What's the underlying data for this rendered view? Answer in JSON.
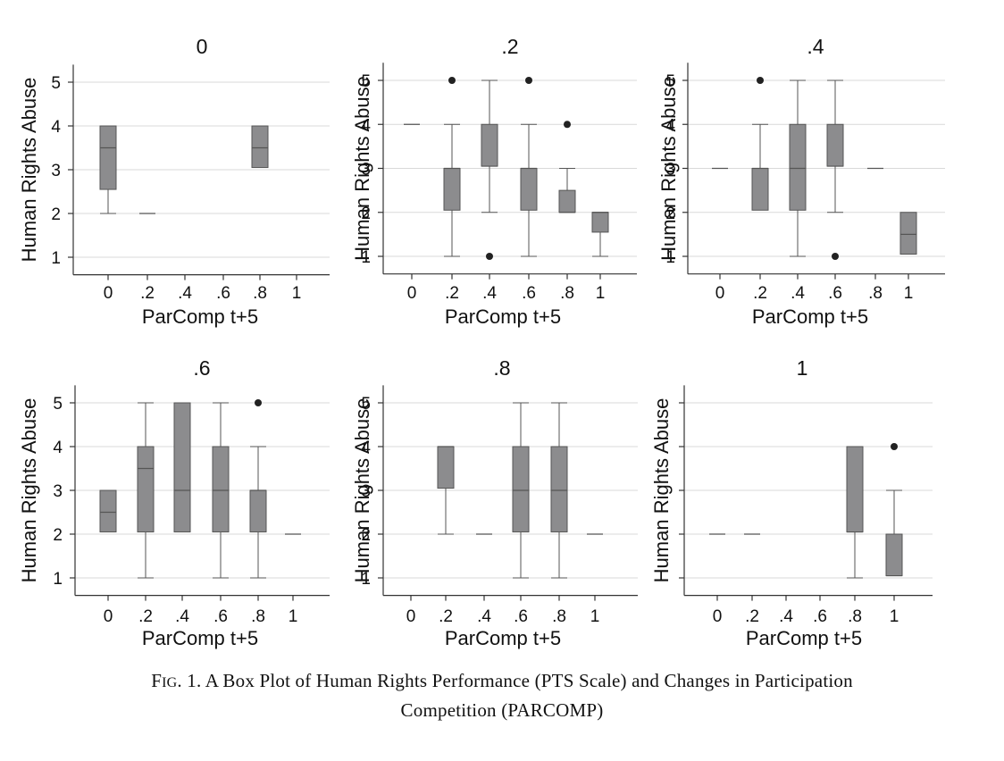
{
  "figure": {
    "caption_prefix_first": "F",
    "caption_prefix_rest": "IG",
    "caption_label": ". 1.",
    "caption_line1": "A Box Plot of Human Rights Performance (PTS Scale) and Changes in Participation",
    "caption_line2": "Competition (PARCOMP)"
  },
  "colors": {
    "box_fill": "#8c8c8e",
    "box_stroke": "#555555",
    "grid": "#d9d9d9",
    "axis": "#333333",
    "outlier": "#222222"
  },
  "chart_data": [
    {
      "type": "box",
      "title": "0",
      "xlabel": "ParComp t+5",
      "ylabel": "Human Rights Abuse",
      "categories": [
        "0",
        ".2",
        ".4",
        ".6",
        ".8",
        "1"
      ],
      "ylim": [
        0.6,
        5.4
      ],
      "yticks": [
        1,
        2,
        3,
        4,
        5
      ],
      "grid": true,
      "boxes": [
        {
          "x": "0",
          "q1": 2.55,
          "median": 3.5,
          "q3": 4,
          "whisker_low": 2,
          "whisker_high": 4,
          "outliers": []
        },
        {
          "x": ".2",
          "q1": 2,
          "median": 2,
          "q3": 2,
          "whisker_low": 2,
          "whisker_high": 2,
          "outliers": []
        },
        {
          "x": ".8",
          "q1": 3.05,
          "median": 3.5,
          "q3": 4,
          "whisker_low": 3.05,
          "whisker_high": 4,
          "outliers": []
        }
      ]
    },
    {
      "type": "box",
      "title": ".2",
      "xlabel": "ParComp t+5",
      "ylabel": "Human Rights Abuse",
      "categories": [
        "0",
        ".2",
        ".4",
        ".6",
        ".8",
        "1"
      ],
      "ylim": [
        0.6,
        5.4
      ],
      "yticks": [
        1,
        2,
        3,
        4,
        5
      ],
      "grid": true,
      "boxes": [
        {
          "x": "0",
          "q1": 4,
          "median": 4,
          "q3": 4,
          "whisker_low": 4,
          "whisker_high": 4,
          "outliers": []
        },
        {
          "x": ".2",
          "q1": 2.05,
          "median": 3,
          "q3": 3,
          "whisker_low": 1,
          "whisker_high": 4,
          "outliers": [
            5
          ]
        },
        {
          "x": ".4",
          "q1": 3.05,
          "median": 3.05,
          "q3": 4,
          "whisker_low": 2,
          "whisker_high": 5,
          "outliers": [
            1
          ]
        },
        {
          "x": ".6",
          "q1": 2.05,
          "median": 3,
          "q3": 3,
          "whisker_low": 1,
          "whisker_high": 4,
          "outliers": [
            5
          ]
        },
        {
          "x": ".8",
          "q1": 2,
          "median": 2,
          "q3": 2.5,
          "whisker_low": 2,
          "whisker_high": 3,
          "outliers": [
            4
          ]
        },
        {
          "x": "1",
          "q1": 1.55,
          "median": 2,
          "q3": 2,
          "whisker_low": 1,
          "whisker_high": 2,
          "outliers": []
        }
      ]
    },
    {
      "type": "box",
      "title": ".4",
      "xlabel": "ParComp t+5",
      "ylabel": "Human Rights Abuse",
      "categories": [
        "0",
        ".2",
        ".4",
        ".6",
        ".8",
        "1"
      ],
      "ylim": [
        0.6,
        5.4
      ],
      "yticks": [
        1,
        2,
        3,
        4,
        5
      ],
      "grid": true,
      "boxes": [
        {
          "x": "0",
          "q1": 3,
          "median": 3,
          "q3": 3,
          "whisker_low": 3,
          "whisker_high": 3,
          "outliers": []
        },
        {
          "x": ".2",
          "q1": 2.05,
          "median": 3,
          "q3": 3,
          "whisker_low": 2.05,
          "whisker_high": 4,
          "outliers": [
            5
          ]
        },
        {
          "x": ".4",
          "q1": 2.05,
          "median": 3,
          "q3": 4,
          "whisker_low": 1,
          "whisker_high": 5,
          "outliers": []
        },
        {
          "x": ".6",
          "q1": 3.05,
          "median": 3.05,
          "q3": 4,
          "whisker_low": 2,
          "whisker_high": 5,
          "outliers": [
            1
          ]
        },
        {
          "x": ".8",
          "q1": 3,
          "median": 3,
          "q3": 3,
          "whisker_low": 3,
          "whisker_high": 3,
          "outliers": []
        },
        {
          "x": "1",
          "q1": 1.05,
          "median": 1.5,
          "q3": 2,
          "whisker_low": 1.05,
          "whisker_high": 2,
          "outliers": []
        }
      ]
    },
    {
      "type": "box",
      "title": ".6",
      "xlabel": "ParComp t+5",
      "ylabel": "Human Rights Abuse",
      "categories": [
        "0",
        ".2",
        ".4",
        ".6",
        ".8",
        "1"
      ],
      "ylim": [
        0.6,
        5.4
      ],
      "yticks": [
        1,
        2,
        3,
        4,
        5
      ],
      "grid": true,
      "boxes": [
        {
          "x": "0",
          "q1": 2.05,
          "median": 2.5,
          "q3": 3,
          "whisker_low": 2.05,
          "whisker_high": 3,
          "outliers": []
        },
        {
          "x": ".2",
          "q1": 2.05,
          "median": 3.5,
          "q3": 4,
          "whisker_low": 1,
          "whisker_high": 5,
          "outliers": []
        },
        {
          "x": ".4",
          "q1": 2.05,
          "median": 3,
          "q3": 5,
          "whisker_low": 2.05,
          "whisker_high": 5,
          "outliers": []
        },
        {
          "x": ".6",
          "q1": 2.05,
          "median": 3,
          "q3": 4,
          "whisker_low": 1,
          "whisker_high": 5,
          "outliers": []
        },
        {
          "x": ".8",
          "q1": 2.05,
          "median": 3,
          "q3": 3,
          "whisker_low": 1,
          "whisker_high": 4,
          "outliers": [
            5
          ]
        },
        {
          "x": "1",
          "q1": 2,
          "median": 2,
          "q3": 2,
          "whisker_low": 2,
          "whisker_high": 2,
          "outliers": []
        }
      ]
    },
    {
      "type": "box",
      "title": ".8",
      "xlabel": "ParComp t+5",
      "ylabel": "Human Rights Abuse",
      "categories": [
        "0",
        ".2",
        ".4",
        ".6",
        ".8",
        "1"
      ],
      "ylim": [
        0.6,
        5.4
      ],
      "yticks": [
        1,
        2,
        3,
        4,
        5
      ],
      "grid": true,
      "boxes": [
        {
          "x": ".2",
          "q1": 3.05,
          "median": 4,
          "q3": 4,
          "whisker_low": 2,
          "whisker_high": 4,
          "outliers": []
        },
        {
          "x": ".4",
          "q1": 2,
          "median": 2,
          "q3": 2,
          "whisker_low": 2,
          "whisker_high": 2,
          "outliers": []
        },
        {
          "x": ".6",
          "q1": 2.05,
          "median": 3,
          "q3": 4,
          "whisker_low": 1,
          "whisker_high": 5,
          "outliers": []
        },
        {
          "x": ".8",
          "q1": 2.05,
          "median": 3,
          "q3": 4,
          "whisker_low": 1,
          "whisker_high": 5,
          "outliers": []
        },
        {
          "x": "1",
          "q1": 2,
          "median": 2,
          "q3": 2,
          "whisker_low": 2,
          "whisker_high": 2,
          "outliers": []
        }
      ]
    },
    {
      "type": "box",
      "title": "1",
      "xlabel": "ParComp t+5",
      "ylabel": "Human Rights Abuse",
      "categories": [
        "0",
        ".2",
        ".4",
        ".6",
        ".8",
        "1"
      ],
      "ylim": [
        0.6,
        5.4
      ],
      "yticks": [
        1,
        2,
        3,
        4,
        5
      ],
      "show_ytick_labels": false,
      "grid": true,
      "boxes": [
        {
          "x": "0",
          "q1": 2,
          "median": 2,
          "q3": 2,
          "whisker_low": 2,
          "whisker_high": 2,
          "outliers": []
        },
        {
          "x": ".2",
          "q1": 2,
          "median": 2,
          "q3": 2,
          "whisker_low": 2,
          "whisker_high": 2,
          "outliers": []
        },
        {
          "x": ".8",
          "q1": 2.05,
          "median": 2.05,
          "q3": 4,
          "whisker_low": 1,
          "whisker_high": 4,
          "outliers": []
        },
        {
          "x": "1",
          "q1": 1.05,
          "median": 1.05,
          "q3": 2,
          "whisker_low": 1.05,
          "whisker_high": 3,
          "outliers": [
            4
          ]
        }
      ]
    }
  ]
}
